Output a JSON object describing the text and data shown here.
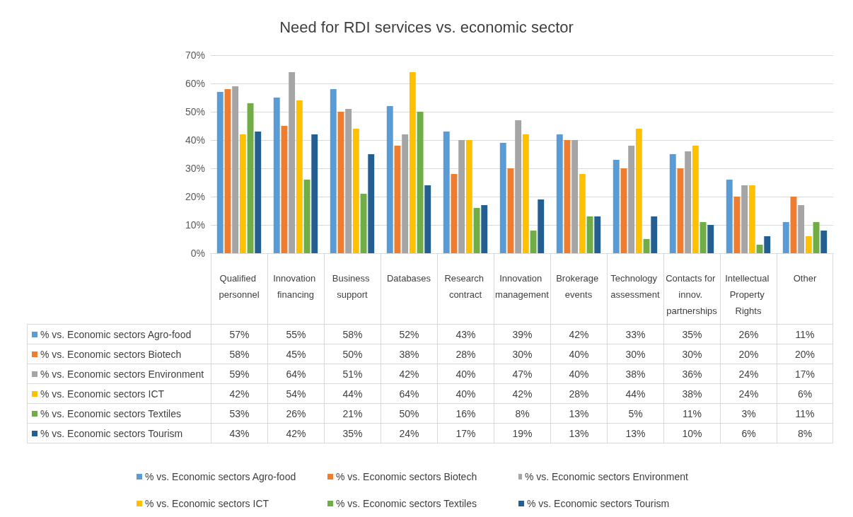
{
  "chart_data": {
    "type": "bar",
    "title": "Need for RDI services vs. economic sector",
    "categories": [
      "Qualified personnel",
      "Innovation financing",
      "Business support",
      "Databases",
      "Research contract",
      "Innovation management",
      "Brokerage events",
      "Technology assessment",
      "Contacts for innov. partnerships",
      "Intellectual Property Rights",
      "Other"
    ],
    "series": [
      {
        "name": "% vs. Economic sectors Agro-food",
        "color": "#5b9bd5",
        "values": [
          57,
          55,
          58,
          52,
          43,
          39,
          42,
          33,
          35,
          26,
          11
        ],
        "value_labels": [
          "57%",
          "55%",
          "58%",
          "52%",
          "43%",
          "39%",
          "42%",
          "33%",
          "35%",
          "26%",
          "11%"
        ]
      },
      {
        "name": "% vs. Economic sectors Biotech",
        "color": "#ed7d31",
        "values": [
          58,
          45,
          50,
          38,
          28,
          30,
          40,
          30,
          30,
          20,
          20
        ],
        "value_labels": [
          "58%",
          "45%",
          "50%",
          "38%",
          "28%",
          "30%",
          "40%",
          "30%",
          "30%",
          "20%",
          "20%"
        ]
      },
      {
        "name": "% vs. Economic sectors Environment",
        "color": "#a5a5a5",
        "values": [
          59,
          64,
          51,
          42,
          40,
          47,
          40,
          38,
          36,
          24,
          17
        ],
        "value_labels": [
          "59%",
          "64%",
          "51%",
          "42%",
          "40%",
          "47%",
          "40%",
          "38%",
          "36%",
          "24%",
          "17%"
        ]
      },
      {
        "name": "% vs. Economic sectors ICT",
        "color": "#ffc000",
        "values": [
          42,
          54,
          44,
          64,
          40,
          42,
          28,
          44,
          38,
          24,
          6
        ],
        "value_labels": [
          "42%",
          "54%",
          "44%",
          "64%",
          "40%",
          "42%",
          "28%",
          "44%",
          "38%",
          "24%",
          "6%"
        ]
      },
      {
        "name": "% vs. Economic sectors Textiles",
        "color": "#70ad47",
        "values": [
          53,
          26,
          21,
          50,
          16,
          8,
          13,
          5,
          11,
          3,
          11
        ],
        "value_labels": [
          "53%",
          "26%",
          "21%",
          "50%",
          "16%",
          "8%",
          "13%",
          "5%",
          "11%",
          "3%",
          "11%"
        ]
      },
      {
        "name": "% vs. Economic sectors Tourism",
        "color": "#255e91",
        "values": [
          43,
          42,
          35,
          24,
          17,
          19,
          13,
          13,
          10,
          6,
          8
        ],
        "value_labels": [
          "43%",
          "42%",
          "35%",
          "24%",
          "17%",
          "19%",
          "13%",
          "13%",
          "10%",
          "6%",
          "8%"
        ]
      }
    ],
    "ylim": [
      0,
      70
    ],
    "yticks": [
      {
        "value": 0,
        "label": "0%"
      },
      {
        "value": 10,
        "label": "10%"
      },
      {
        "value": 20,
        "label": "20%"
      },
      {
        "value": 30,
        "label": "30%"
      },
      {
        "value": 40,
        "label": "40%"
      },
      {
        "value": 50,
        "label": "50%"
      },
      {
        "value": 60,
        "label": "60%"
      },
      {
        "value": 70,
        "label": "70%"
      }
    ],
    "grid": "y",
    "legend": "bottom"
  }
}
